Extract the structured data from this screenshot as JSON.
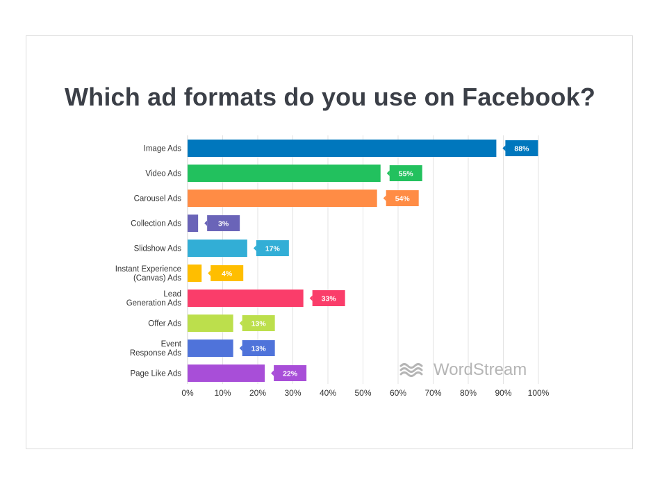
{
  "chart_data": {
    "type": "bar",
    "orientation": "horizontal",
    "title": "Which ad formats do you use on Facebook?",
    "categories": [
      [
        "Image Ads"
      ],
      [
        "Video Ads"
      ],
      [
        "Carousel Ads"
      ],
      [
        "Collection Ads"
      ],
      [
        "Slidshow Ads"
      ],
      [
        "Instant Experience",
        "(Canvas) Ads"
      ],
      [
        "Lead",
        "Generation Ads"
      ],
      [
        "Offer Ads"
      ],
      [
        "Event",
        "Response Ads"
      ],
      [
        "Page Like Ads"
      ]
    ],
    "values": [
      88,
      55,
      54,
      3,
      17,
      4,
      33,
      13,
      13,
      22
    ],
    "value_labels": [
      "88%",
      "55%",
      "54%",
      "3%",
      "17%",
      "4%",
      "33%",
      "13%",
      "13%",
      "22%"
    ],
    "colors": [
      "#0077bd",
      "#22c15e",
      "#ff8c45",
      "#6a64b8",
      "#32aed6",
      "#ffbe00",
      "#fa3d6a",
      "#bcdf4c",
      "#4f73da",
      "#a84ed8"
    ],
    "xlim": [
      0,
      100
    ],
    "xticks": [
      0,
      10,
      20,
      30,
      40,
      50,
      60,
      70,
      80,
      90,
      100
    ],
    "xtick_labels": [
      "0%",
      "10%",
      "20%",
      "30%",
      "40%",
      "50%",
      "60%",
      "70%",
      "80%",
      "90%",
      "100%"
    ],
    "grid": "vertical",
    "xlabel": "",
    "ylabel": ""
  },
  "watermark": {
    "text": "WordStream",
    "icon": "wordstream-waves-icon",
    "color": "#b5b5b5"
  }
}
